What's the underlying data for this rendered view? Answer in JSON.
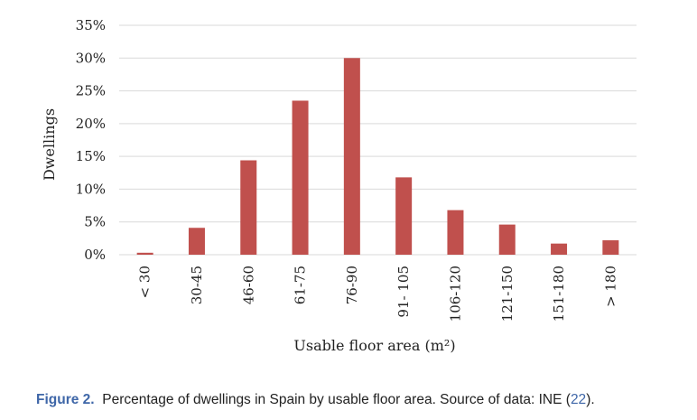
{
  "chart_data": {
    "type": "bar",
    "categories": [
      "< 30",
      "30-45",
      "46-60",
      "61-75",
      "76-90",
      "91- 105",
      "106-120",
      "121-150",
      "151-180",
      "> 180"
    ],
    "values": [
      0.3,
      4.1,
      14.4,
      23.5,
      30.0,
      11.8,
      6.8,
      4.6,
      1.7,
      2.2
    ],
    "ylabel": "Dwellings",
    "xlabel": "Usable floor area (m²)",
    "ylim": [
      0,
      35
    ],
    "yticks": [
      "0%",
      "5%",
      "10%",
      "15%",
      "20%",
      "25%",
      "30%",
      "35%"
    ],
    "grid": true,
    "bar_color": "#c0504d",
    "grid_color": "#d9d9d9"
  },
  "caption": {
    "label": "Figure 2.",
    "text": "Percentage of dwellings in Spain by usable floor area. Source of data: INE (",
    "ref": "22",
    "end": ")."
  }
}
